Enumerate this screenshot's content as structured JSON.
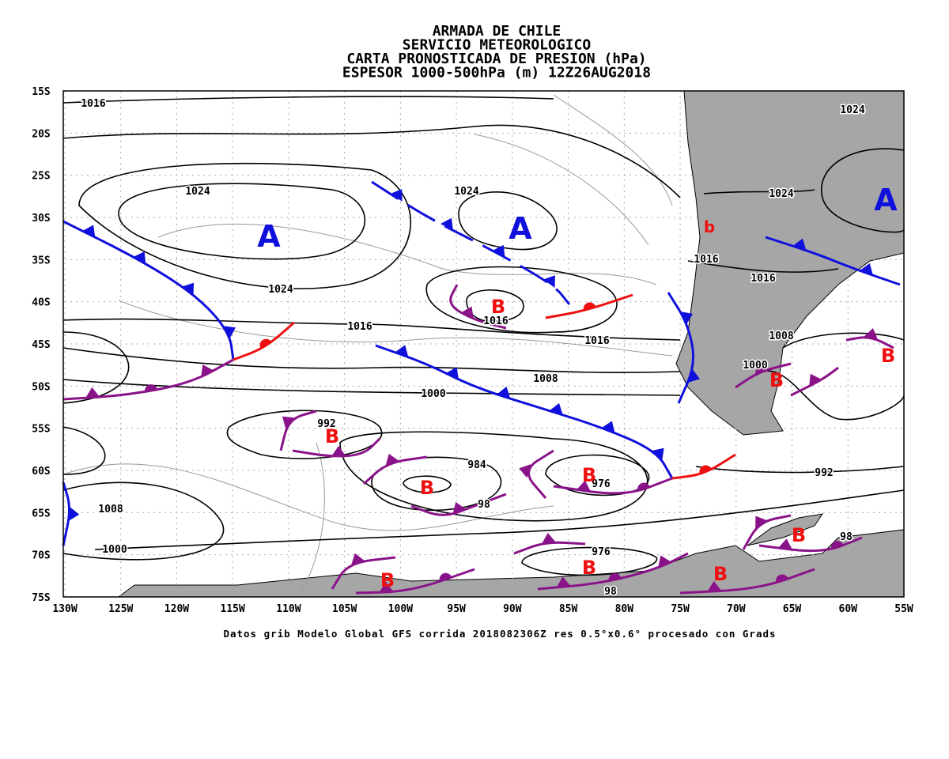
{
  "title_lines": [
    "ARMADA DE CHILE",
    "SERVICIO METEOROLOGICO",
    "CARTA PRONOSTICADA DE PRESION (hPa)",
    "ESPESOR 1000-500hPa (m) 12Z26AUG2018"
  ],
  "footer": "Datos grib Modelo Global GFS corrida 2018082306Z res 0.5°x0.6° procesado con Grads",
  "lonlim": [
    -130,
    -55
  ],
  "latlim": [
    -15,
    -75
  ],
  "lon_ticks": [
    {
      "value": -130,
      "label": "130W"
    },
    {
      "value": -125,
      "label": "125W"
    },
    {
      "value": -120,
      "label": "120W"
    },
    {
      "value": -115,
      "label": "115W"
    },
    {
      "value": -110,
      "label": "110W"
    },
    {
      "value": -105,
      "label": "105W"
    },
    {
      "value": -100,
      "label": "100W"
    },
    {
      "value": -95,
      "label": "95W"
    },
    {
      "value": -90,
      "label": "90W"
    },
    {
      "value": -85,
      "label": "85W"
    },
    {
      "value": -80,
      "label": "80W"
    },
    {
      "value": -75,
      "label": "75W"
    },
    {
      "value": -70,
      "label": "70W"
    },
    {
      "value": -65,
      "label": "65W"
    },
    {
      "value": -60,
      "label": "60W"
    },
    {
      "value": -55,
      "label": "55W"
    }
  ],
  "lat_ticks": [
    {
      "value": -15,
      "label": "15S"
    },
    {
      "value": -20,
      "label": "20S"
    },
    {
      "value": -25,
      "label": "25S"
    },
    {
      "value": -30,
      "label": "30S"
    },
    {
      "value": -35,
      "label": "35S"
    },
    {
      "value": -40,
      "label": "40S"
    },
    {
      "value": -45,
      "label": "45S"
    },
    {
      "value": -50,
      "label": "50S"
    },
    {
      "value": -55,
      "label": "55S"
    },
    {
      "value": -60,
      "label": "60S"
    },
    {
      "value": -65,
      "label": "65S"
    },
    {
      "value": -70,
      "label": "70S"
    },
    {
      "value": -75,
      "label": "75S"
    }
  ],
  "isobar_labels": [
    "1016",
    "1024",
    "1024",
    "1024",
    "1024",
    "1016",
    "1016",
    "1024",
    "1016",
    "1016",
    "1016",
    "1008",
    "1000",
    "1008",
    "1000",
    "992",
    "984",
    "976",
    "992",
    "1008",
    "98",
    "1000",
    "976",
    "98",
    "98"
  ],
  "highs": [
    "A",
    "A",
    "A"
  ],
  "lows": [
    "B",
    "B",
    "B",
    "B",
    "B",
    "B",
    "B",
    "B",
    "B",
    "B"
  ],
  "marker": "b"
}
